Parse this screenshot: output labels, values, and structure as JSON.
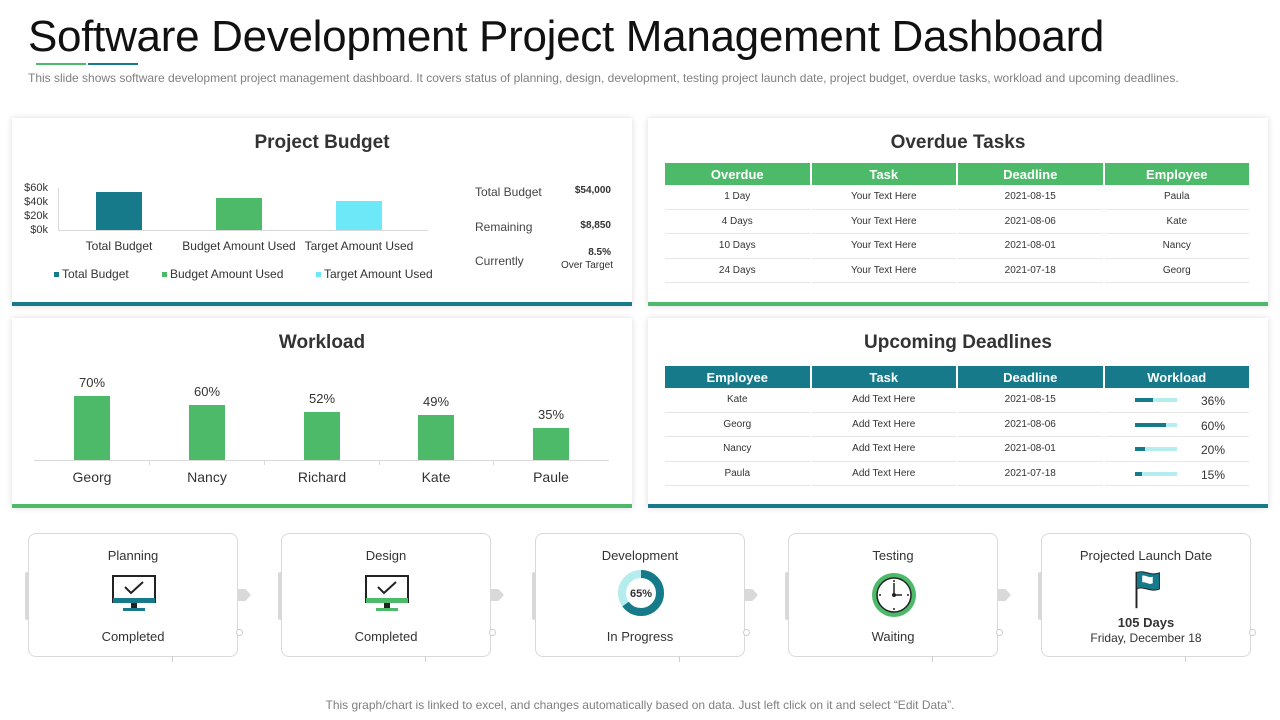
{
  "title": "Software Development Project Management Dashboard",
  "subtitle": "This slide shows software development project management dashboard. It covers status of planning, design, development, testing project launch date, project budget, overdue tasks, workload and upcoming deadlines.",
  "colors": {
    "teal": "#167a8b",
    "green": "#4dba6a",
    "light_blue": "#6ce8f8",
    "gray_text": "#7f7f7f"
  },
  "budget": {
    "title": "Project Budget",
    "summary": {
      "total_label": "Total Budget",
      "total_value": "$54,000",
      "remaining_label": "Remaining",
      "remaining_value": "$8,850",
      "currently_label": "Currently",
      "currently_value": "8.5%",
      "currently_sub": "Over Target"
    }
  },
  "chart_data": {
    "type": "bar",
    "categories": [
      "Total Budget",
      "Budget Amount Used",
      "Target Amount Used"
    ],
    "series": [
      {
        "name": "Total Budget",
        "color": "#167a8b",
        "values": [
          54000,
          null,
          null
        ]
      },
      {
        "name": "Budget Amount Used",
        "color": "#4dba6a",
        "values": [
          null,
          45150,
          null
        ]
      },
      {
        "name": "Target Amount Used",
        "color": "#6ce8f8",
        "values": [
          null,
          null,
          41600
        ]
      }
    ],
    "values": [
      54000,
      45150,
      41600
    ],
    "yticks": [
      "$60k",
      "$40k",
      "$20k",
      "$0k"
    ],
    "ylim": [
      0,
      60000
    ],
    "legend": [
      "Total Budget",
      "Budget Amount Used",
      "Target Amount Used"
    ],
    "legend_position": "bottom"
  },
  "overdue": {
    "title": "Overdue Tasks",
    "headers": [
      "Overdue",
      "Task",
      "Deadline",
      "Employee"
    ],
    "rows": [
      [
        "1 Day",
        "Your Text Here",
        "2021-08-15",
        "Paula"
      ],
      [
        "4 Days",
        "Your Text Here",
        "2021-08-06",
        "Kate"
      ],
      [
        "10 Days",
        "Your Text Here",
        "2021-08-01",
        "Nancy"
      ],
      [
        "24 Days",
        "Your Text Here",
        "2021-07-18",
        "Georg"
      ]
    ]
  },
  "workload": {
    "title": "Workload",
    "items": [
      {
        "name": "Georg",
        "value": 70,
        "label": "70%"
      },
      {
        "name": "Nancy",
        "value": 60,
        "label": "60%"
      },
      {
        "name": "Richard",
        "value": 52,
        "label": "52%"
      },
      {
        "name": "Kate",
        "value": 49,
        "label": "49%"
      },
      {
        "name": "Paule",
        "value": 35,
        "label": "35%"
      }
    ]
  },
  "upcoming": {
    "title": "Upcoming Deadlines",
    "headers": [
      "Employee",
      "Task",
      "Deadline",
      "Workload"
    ],
    "rows": [
      {
        "employee": "Kate",
        "task": "Add Text Here",
        "deadline": "2021-08-15",
        "workload": 36,
        "workload_label": "36%"
      },
      {
        "employee": "Georg",
        "task": "Add Text Here",
        "deadline": "2021-08-06",
        "workload": 60,
        "workload_label": "60%"
      },
      {
        "employee": "Nancy",
        "task": "Add Text Here",
        "deadline": "2021-08-01",
        "workload": 20,
        "workload_label": "20%"
      },
      {
        "employee": "Paula",
        "task": "Add Text Here",
        "deadline": "2021-07-18",
        "workload": 15,
        "workload_label": "15%"
      }
    ]
  },
  "stages": [
    {
      "name": "Planning",
      "status": "Completed",
      "icon": "monitor-check-icon"
    },
    {
      "name": "Design",
      "status": "Completed",
      "icon": "monitor-check-icon"
    },
    {
      "name": "Development",
      "status": "In Progress",
      "icon": "progress-donut-icon",
      "progress": 65,
      "progress_label": "65%"
    },
    {
      "name": "Testing",
      "status": "Waiting",
      "icon": "clock-icon"
    },
    {
      "name": "Projected Launch Date",
      "days": "105 Days",
      "date": "Friday, December 18",
      "icon": "flag-icon"
    }
  ],
  "footer": "This graph/chart is linked to excel, and changes automatically based on data. Just left click on it and select “Edit Data”."
}
